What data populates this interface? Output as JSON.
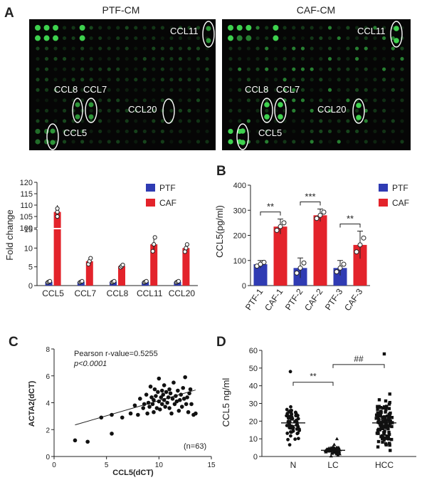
{
  "panel_labels": {
    "a": "A",
    "b": "B",
    "c": "C",
    "d": "D"
  },
  "array": {
    "left_title": "PTF-CM",
    "right_title": "CAF-CM",
    "left_labels": [
      "CCL11",
      "CCL8",
      "CCL7",
      "CCL20",
      "CCL5"
    ],
    "right_labels": [
      "CCL11",
      "CCL8",
      "CCL7",
      "CCL20",
      "CCL5"
    ]
  },
  "colors": {
    "ptf": "#2f3bb3",
    "caf": "#e3232b",
    "spot": "#3ed14e",
    "array_bg": "#060606"
  },
  "chart_data": [
    {
      "id": "fold-change",
      "type": "bar",
      "ylabel": "Fold change",
      "categories": [
        "CCL5",
        "CCL7",
        "CCL8",
        "CCL11",
        "CCL20"
      ],
      "yticks_lower": [
        "0",
        "5",
        "10",
        "15"
      ],
      "yticks_upper": [
        "100",
        "105",
        "110",
        "115",
        "120"
      ],
      "ylim_lower": [
        0,
        15
      ],
      "ylim_upper": [
        100,
        120
      ],
      "legend": [
        "PTF",
        "CAF"
      ],
      "legend_position": "top-right",
      "series": [
        {
          "name": "PTF",
          "values": [
            1,
            1,
            1,
            1,
            1
          ],
          "error": [
            0.2,
            0.2,
            0.2,
            0.2,
            0.2
          ]
        },
        {
          "name": "CAF",
          "values": [
            107,
            6.5,
            5.2,
            11,
            10
          ],
          "error": [
            3,
            1,
            0.4,
            2.3,
            1.2
          ]
        }
      ]
    },
    {
      "id": "ccl5-elisa",
      "type": "bar",
      "ylabel": "CCL5(pg/ml)",
      "categories": [
        "PTF-1",
        "CAF-1",
        "PTF-2",
        "CAF-2",
        "PTF-3",
        "CAF-3"
      ],
      "values": [
        85,
        235,
        70,
        280,
        70,
        162
      ],
      "error": [
        15,
        30,
        40,
        25,
        30,
        55
      ],
      "series_of_category": [
        "PTF",
        "CAF",
        "PTF",
        "CAF",
        "PTF",
        "CAF"
      ],
      "yticks": [
        "0",
        "100",
        "200",
        "300",
        "400"
      ],
      "ylim": [
        0,
        400
      ],
      "legend": [
        "PTF",
        "CAF"
      ],
      "legend_position": "top-right",
      "significance": [
        {
          "between": [
            "PTF-1",
            "CAF-1"
          ],
          "label": "**"
        },
        {
          "between": [
            "PTF-2",
            "CAF-2"
          ],
          "label": "***"
        },
        {
          "between": [
            "PTF-3",
            "CAF-3"
          ],
          "label": "**"
        }
      ]
    },
    {
      "id": "correlation",
      "type": "scatter",
      "xlabel": "CCL5(dCT)",
      "ylabel": "ACTA2(dCT)",
      "xticks": [
        "0",
        "5",
        "10",
        "15"
      ],
      "yticks": [
        "0",
        "2",
        "4",
        "6",
        "8"
      ],
      "xlim": [
        0,
        15
      ],
      "ylim": [
        0,
        8
      ],
      "annotation_r": "Pearson r-value=0.5255",
      "annotation_p": "p<0.0001",
      "annotation_n": "(n=63)",
      "fit_line": [
        [
          2,
          2.35
        ],
        [
          13.5,
          4.95
        ]
      ],
      "points": [
        [
          2,
          1.2
        ],
        [
          3.2,
          1.1
        ],
        [
          5.5,
          1.7
        ],
        [
          4.5,
          2.9
        ],
        [
          5.5,
          3.1
        ],
        [
          6.5,
          2.9
        ],
        [
          7.3,
          3.2
        ],
        [
          7.7,
          3.8
        ],
        [
          8,
          3.1
        ],
        [
          8.2,
          4.3
        ],
        [
          8.5,
          3.6
        ],
        [
          8.6,
          3.9
        ],
        [
          8.8,
          4.6
        ],
        [
          8.9,
          3.2
        ],
        [
          9,
          4
        ],
        [
          9.1,
          3.7
        ],
        [
          9.2,
          5.2
        ],
        [
          9.3,
          4.4
        ],
        [
          9.4,
          3.9
        ],
        [
          9.5,
          4.2
        ],
        [
          9.5,
          3.3
        ],
        [
          9.6,
          5
        ],
        [
          9.7,
          4.5
        ],
        [
          9.8,
          3.6
        ],
        [
          9.9,
          4.8
        ],
        [
          10,
          4.1
        ],
        [
          10,
          5.8
        ],
        [
          10.1,
          3.5
        ],
        [
          10.2,
          4.4
        ],
        [
          10.3,
          4.9
        ],
        [
          10.3,
          3.9
        ],
        [
          10.4,
          4.6
        ],
        [
          10.5,
          4.2
        ],
        [
          10.5,
          5.3
        ],
        [
          10.6,
          3.7
        ],
        [
          10.7,
          4.8
        ],
        [
          10.8,
          4
        ],
        [
          10.9,
          4.4
        ],
        [
          11,
          5
        ],
        [
          11,
          3.6
        ],
        [
          11.1,
          4.7
        ],
        [
          11.2,
          3.2
        ],
        [
          11.3,
          4.3
        ],
        [
          11.4,
          5.5
        ],
        [
          11.5,
          3.9
        ],
        [
          11.6,
          4.5
        ],
        [
          11.7,
          4.1
        ],
        [
          11.8,
          4.9
        ],
        [
          11.9,
          3.4
        ],
        [
          12,
          4.2
        ],
        [
          12.1,
          4.6
        ],
        [
          12.2,
          3.7
        ],
        [
          12.3,
          5.1
        ],
        [
          12.4,
          4.3
        ],
        [
          12.5,
          5.9
        ],
        [
          12.6,
          3.9
        ],
        [
          12.7,
          4.4
        ],
        [
          12.8,
          3.3
        ],
        [
          12.9,
          4.7
        ],
        [
          13,
          5
        ],
        [
          13.1,
          3.9
        ],
        [
          13.3,
          3.1
        ],
        [
          13.5,
          3.2
        ]
      ]
    },
    {
      "id": "serum-ccl5",
      "type": "scatter",
      "ylabel": "CCL5 ng/ml",
      "categories": [
        "N",
        "LC",
        "HCC"
      ],
      "yticks": [
        "0",
        "10",
        "20",
        "30",
        "40",
        "50",
        "60"
      ],
      "ylim": [
        0,
        60
      ],
      "means": [
        19,
        3.5,
        19
      ],
      "sem": [
        1.5,
        0.6,
        1.6
      ],
      "significance": [
        {
          "between": [
            "N",
            "LC"
          ],
          "label": "**"
        },
        {
          "between": [
            "LC",
            "HCC"
          ],
          "label": "##"
        }
      ]
    }
  ]
}
